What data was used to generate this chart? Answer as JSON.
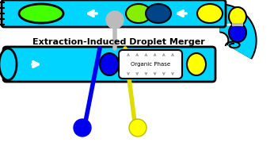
{
  "title": "Extraction-Induced Droplet Merger",
  "title_fontsize": 8,
  "title_fontweight": "bold",
  "bg_color": "#ffffff",
  "cyan": "#00D4FF",
  "blue": "#0000EE",
  "yellow": "#FFFF00",
  "lime": "#44FF00",
  "gray": "#BBBBBB",
  "black": "#000000",
  "white": "#ffffff",
  "dark_navy": "#000033"
}
